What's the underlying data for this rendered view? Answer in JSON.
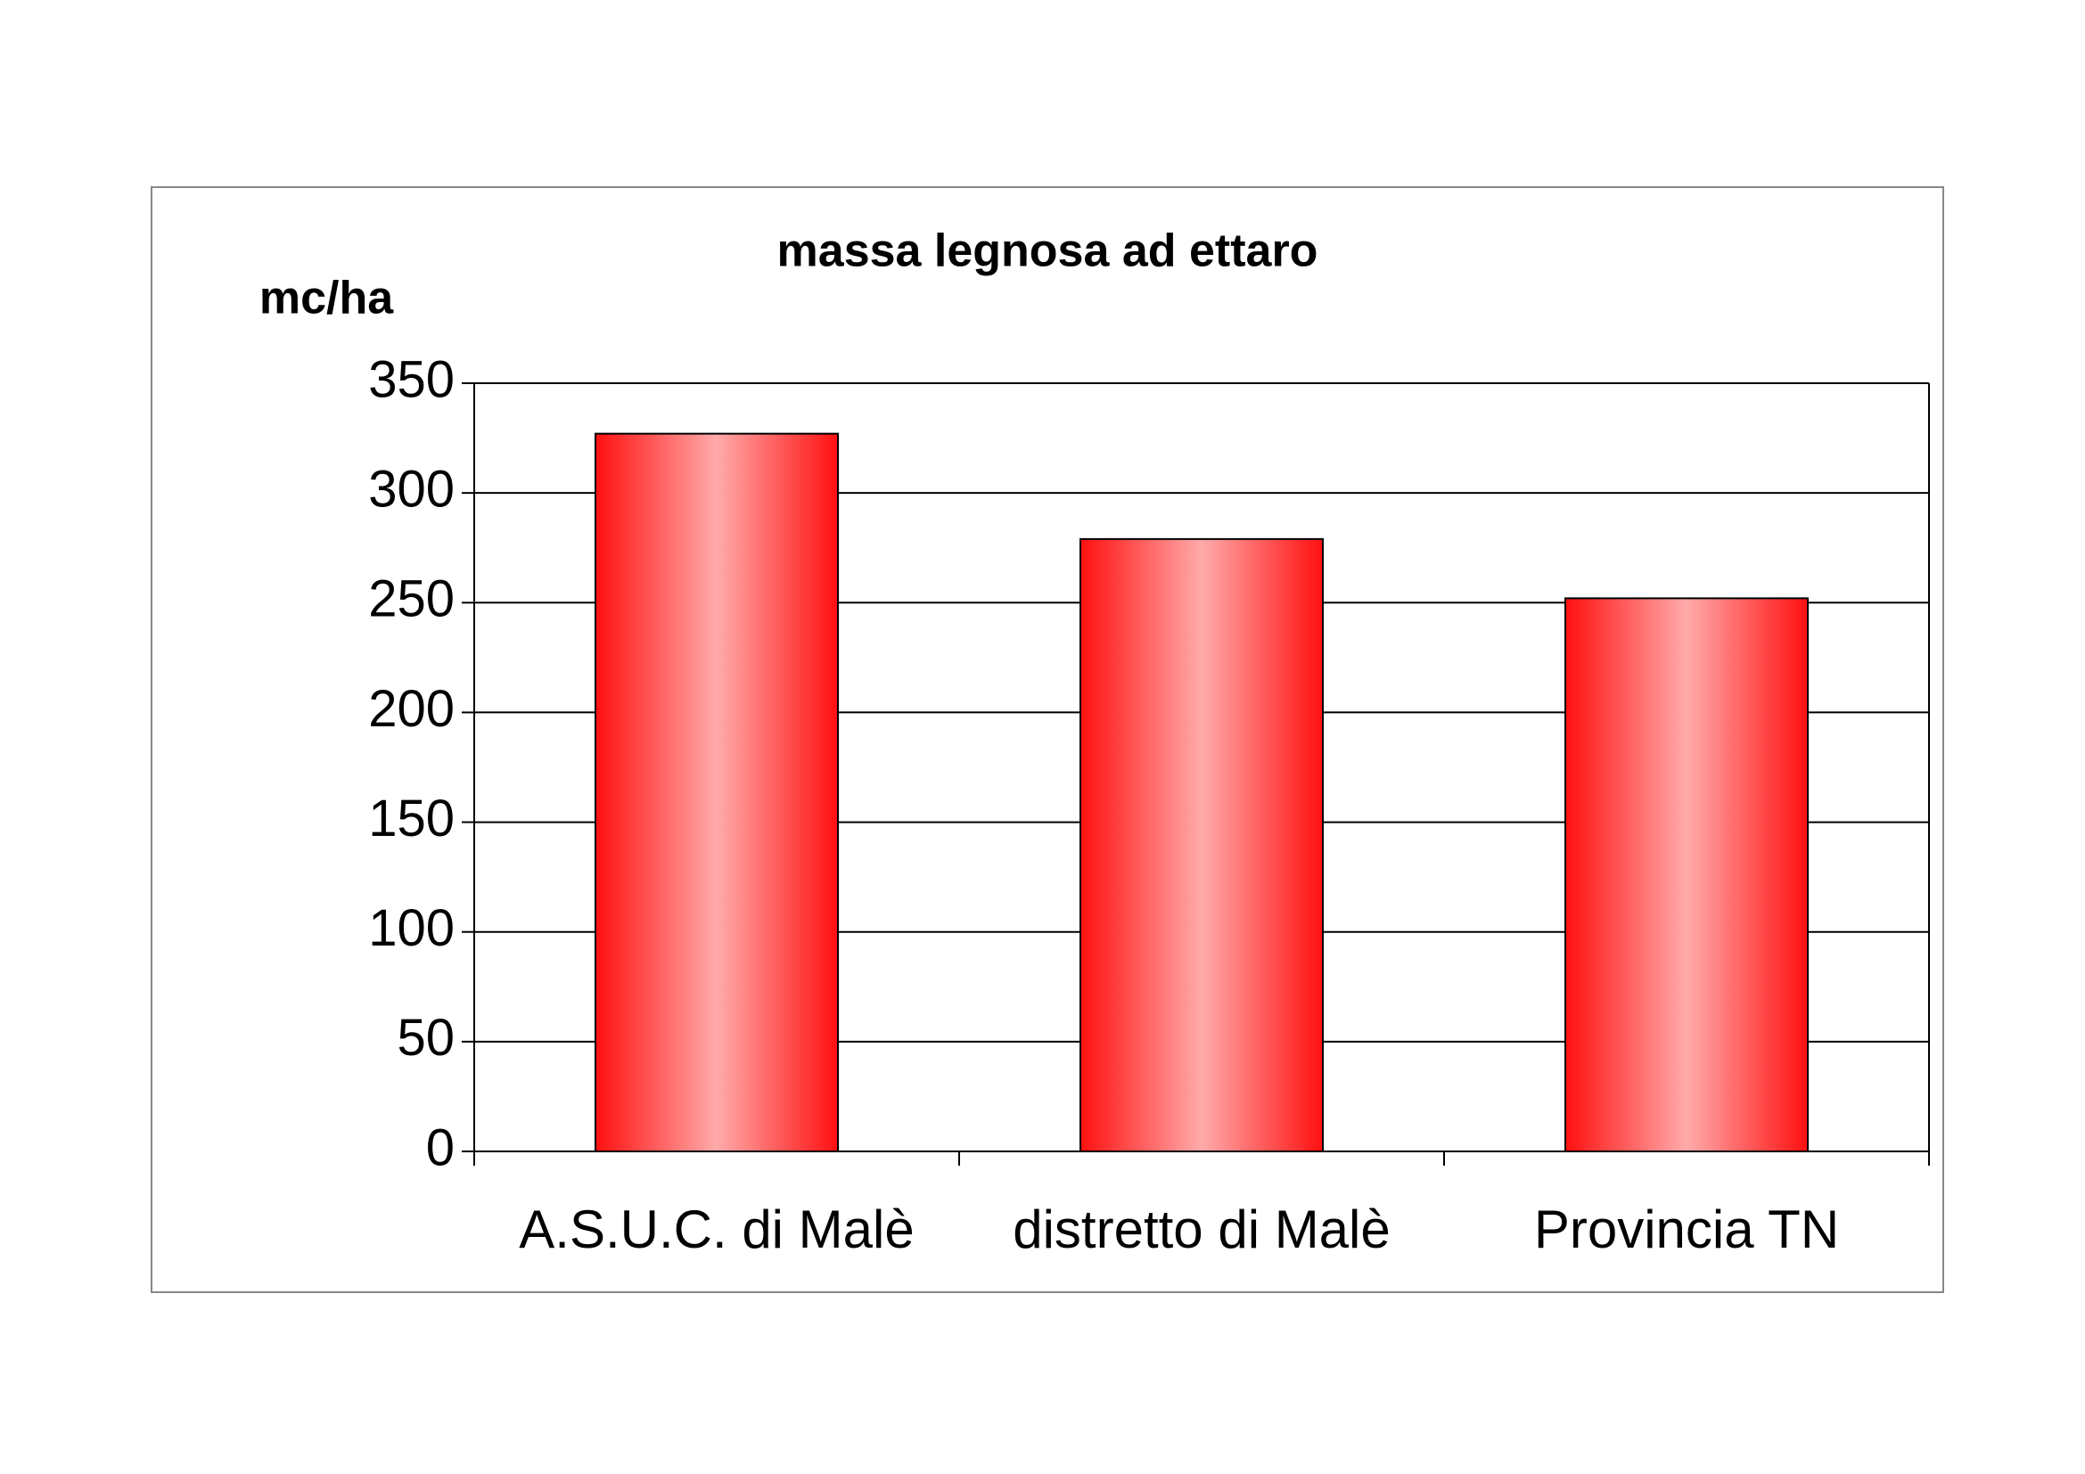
{
  "chart_data": {
    "type": "bar",
    "title": "massa legnosa ad ettaro",
    "y_label": "mc/ha",
    "categories": [
      "A.S.U.C. di Malè",
      "distretto di Malè",
      "Provincia TN"
    ],
    "values": [
      327,
      279,
      252
    ],
    "color": "#ff1010",
    "ylim": [
      0,
      350
    ],
    "yticks": [
      0,
      50,
      100,
      150,
      200,
      250,
      300,
      350
    ],
    "grid": true
  }
}
